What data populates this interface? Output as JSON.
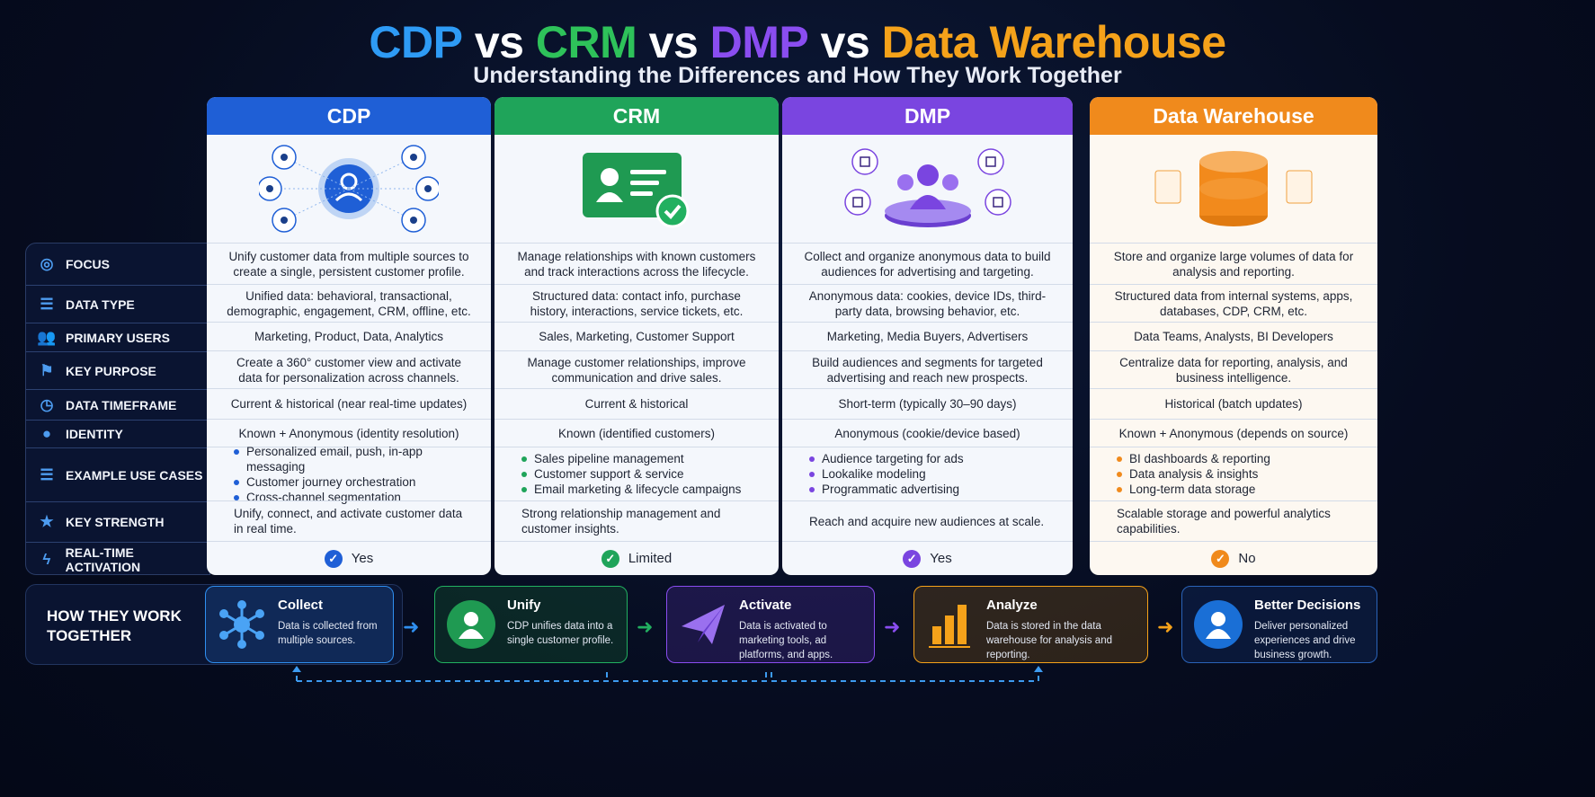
{
  "title": {
    "parts": [
      {
        "text": "CDP",
        "color": "#2e9bf5"
      },
      {
        "text": " vs ",
        "color": "#ffffff"
      },
      {
        "text": "CRM",
        "color": "#2ec25a"
      },
      {
        "text": " vs ",
        "color": "#ffffff"
      },
      {
        "text": "DMP",
        "color": "#8a4df0"
      },
      {
        "text": " vs ",
        "color": "#ffffff"
      },
      {
        "text": "Data Warehouse",
        "color": "#f5a21a"
      }
    ]
  },
  "subtitle": "Understanding the Differences and How They Work Together",
  "row_labels": [
    {
      "label": "FOCUS",
      "icon": "target-icon"
    },
    {
      "label": "DATA TYPE",
      "icon": "database-icon"
    },
    {
      "label": "PRIMARY USERS",
      "icon": "users-icon"
    },
    {
      "label": "KEY PURPOSE",
      "icon": "flag-icon"
    },
    {
      "label": "DATA TIMEFRAME",
      "icon": "clock-icon"
    },
    {
      "label": "IDENTITY",
      "icon": "user-icon"
    },
    {
      "label": "EXAMPLE USE CASES",
      "icon": "database-icon"
    },
    {
      "label": "KEY STRENGTH",
      "icon": "star-icon"
    },
    {
      "label": "REAL-TIME ACTIVATION",
      "icon": "lightning-icon"
    }
  ],
  "columns": [
    {
      "name": "CDP",
      "color": "#1f5fd6",
      "focus": "Unify customer data from multiple sources to create a single, persistent customer profile.",
      "data_type": "Unified data: behavioral, transactional, demographic, engagement, CRM, offline, etc.",
      "primary_users": "Marketing, Product, Data, Analytics",
      "key_purpose": "Create a 360° customer view and activate data for personalization across channels.",
      "timeframe": "Current & historical (near real-time updates)",
      "identity": "Known + Anonymous (identity resolution)",
      "use_cases": [
        "Personalized email, push, in-app messaging",
        "Customer journey orchestration",
        "Cross-channel segmentation"
      ],
      "strength": "Unify, connect, and activate customer data in real time.",
      "realtime": "Yes"
    },
    {
      "name": "CRM",
      "color": "#1fa45a",
      "focus": "Manage relationships with known customers and track interactions across the lifecycle.",
      "data_type": "Structured data: contact info, purchase history, interactions, service tickets, etc.",
      "primary_users": "Sales, Marketing, Customer Support",
      "key_purpose": "Manage customer relationships, improve communication and drive sales.",
      "timeframe": "Current & historical",
      "identity": "Known (identified customers)",
      "use_cases": [
        "Sales pipeline management",
        "Customer support & service",
        "Email marketing & lifecycle campaigns"
      ],
      "strength": "Strong relationship management and customer insights.",
      "realtime": "Limited"
    },
    {
      "name": "DMP",
      "color": "#7a45e0",
      "focus": "Collect and organize anonymous data to build audiences for advertising and targeting.",
      "data_type": "Anonymous data: cookies, device IDs, third-party data, browsing behavior, etc.",
      "primary_users": "Marketing, Media Buyers, Advertisers",
      "key_purpose": "Build audiences and segments for targeted advertising and reach new prospects.",
      "timeframe": "Short-term (typically 30–90 days)",
      "identity": "Anonymous (cookie/device based)",
      "use_cases": [
        "Audience targeting for ads",
        "Lookalike modeling",
        "Programmatic advertising"
      ],
      "strength": "Reach and acquire new audiences at scale.",
      "realtime": "Yes"
    },
    {
      "name": "Data Warehouse",
      "color": "#f08a1c",
      "focus": "Store and organize large volumes of data for analysis and reporting.",
      "data_type": "Structured data from internal systems, apps, databases, CDP, CRM, etc.",
      "primary_users": "Data Teams, Analysts, BI Developers",
      "key_purpose": "Centralize data for reporting, analysis, and business intelligence.",
      "timeframe": "Historical (batch updates)",
      "identity": "Known + Anonymous (depends on source)",
      "use_cases": [
        "BI dashboards & reporting",
        "Data analysis & insights",
        "Long-term data storage"
      ],
      "strength": "Scalable storage and powerful analytics capabilities.",
      "realtime": "No"
    }
  ],
  "how": {
    "label": "HOW THEY WORK TOGETHER",
    "steps": [
      {
        "title": "Collect",
        "desc": "Data is collected from multiple sources.",
        "color": "#2f8ff0"
      },
      {
        "title": "Unify",
        "desc": "CDP unifies data into a single customer profile.",
        "color": "#22b060"
      },
      {
        "title": "Activate",
        "desc": "Data is activated to marketing tools, ad platforms, and apps.",
        "color": "#8a4df0"
      },
      {
        "title": "Analyze",
        "desc": "Data is stored in the data warehouse for analysis and reporting.",
        "color": "#f5a21a"
      },
      {
        "title": "Better Decisions",
        "desc": "Deliver personalized experiences and drive business growth.",
        "color": "#2a63b8"
      }
    ]
  }
}
